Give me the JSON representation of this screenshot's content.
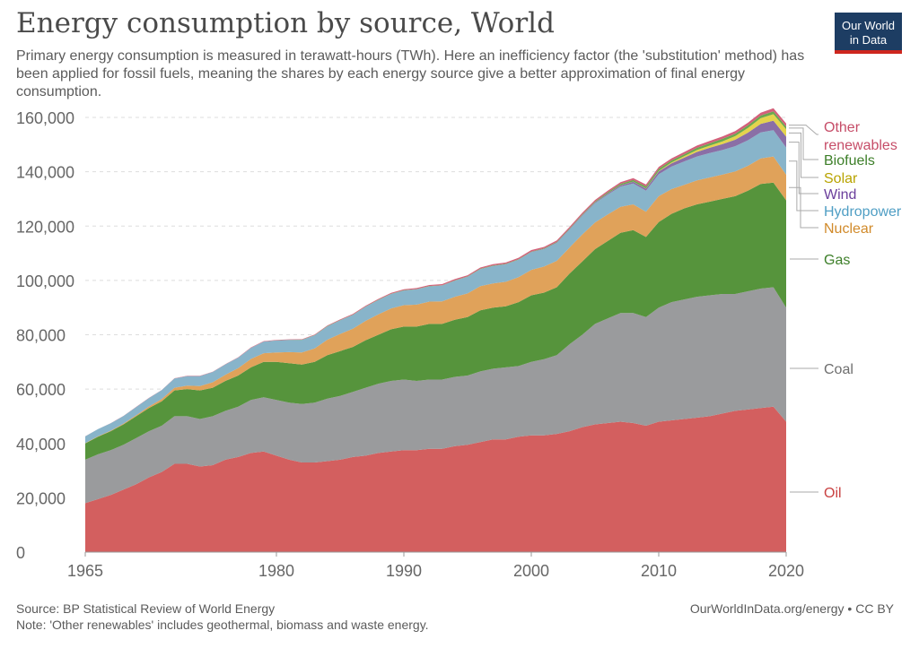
{
  "title": "Energy consumption by source, World",
  "subtitle": "Primary energy consumption is measured in terawatt-hours (TWh). Here an inefficiency factor (the 'substitution' method) has been applied for fossil fuels, meaning the shares by each energy source give a better approximation of final energy consumption.",
  "logo": {
    "line1": "Our World",
    "line2": "in Data",
    "bg": "#1d3d63",
    "accent": "#ce261e"
  },
  "footer": {
    "source": "Source: BP Statistical Review of World Energy",
    "note": "Note: 'Other renewables' includes geothermal, biomass and waste energy.",
    "license": "OurWorldInData.org/energy • CC BY"
  },
  "chart_data": {
    "type": "area",
    "stacked": true,
    "x": [
      1965,
      1966,
      1967,
      1968,
      1969,
      1970,
      1971,
      1972,
      1973,
      1974,
      1975,
      1976,
      1977,
      1978,
      1979,
      1980,
      1981,
      1982,
      1983,
      1984,
      1985,
      1986,
      1987,
      1988,
      1989,
      1990,
      1991,
      1992,
      1993,
      1994,
      1995,
      1996,
      1997,
      1998,
      1999,
      2000,
      2001,
      2002,
      2003,
      2004,
      2005,
      2006,
      2007,
      2008,
      2009,
      2010,
      2011,
      2012,
      2013,
      2014,
      2015,
      2016,
      2017,
      2018,
      2019,
      2020
    ],
    "x_ticks": [
      1965,
      1980,
      1990,
      2000,
      2010,
      2020
    ],
    "y_ticks": [
      0,
      20000,
      40000,
      60000,
      80000,
      100000,
      120000,
      140000,
      160000
    ],
    "y_tick_labels": [
      "0",
      "20,000",
      "40,000",
      "60,000",
      "80,000",
      "100,000",
      "120,000",
      "140,000",
      "160,000"
    ],
    "ylim": [
      0,
      160000
    ],
    "grid": "horizontal dashed",
    "series": [
      {
        "name": "Oil",
        "color": "#d35f5f",
        "label_color": "#c94040",
        "values": [
          18000,
          19500,
          21000,
          23000,
          25000,
          27500,
          29500,
          32500,
          32500,
          31500,
          32000,
          34000,
          35000,
          36500,
          37000,
          35500,
          34000,
          33000,
          33000,
          33500,
          34000,
          35000,
          35500,
          36500,
          37000,
          37500,
          37500,
          38000,
          38000,
          39000,
          39500,
          40500,
          41500,
          41500,
          42500,
          43000,
          43000,
          43500,
          44500,
          46000,
          47000,
          47500,
          48000,
          47500,
          46500,
          48000,
          48500,
          49000,
          49500,
          50000,
          51000,
          52000,
          52500,
          53000,
          53500,
          48000
        ]
      },
      {
        "name": "Coal",
        "color": "#9a9b9d",
        "label_color": "#6e6e6e",
        "values": [
          16000,
          16500,
          16500,
          16500,
          17000,
          17000,
          17000,
          17500,
          17500,
          17500,
          18000,
          18000,
          18500,
          19500,
          20000,
          20500,
          21000,
          21500,
          22000,
          23000,
          23500,
          24000,
          25000,
          25500,
          26000,
          26000,
          25500,
          25500,
          25500,
          25500,
          25500,
          26000,
          26000,
          26500,
          26000,
          27000,
          28000,
          29000,
          32000,
          34000,
          37000,
          38500,
          40000,
          40500,
          40000,
          42000,
          43500,
          44000,
          44500,
          44500,
          44000,
          43000,
          43500,
          44000,
          44000,
          42000
        ]
      },
      {
        "name": "Gas",
        "color": "#56943c",
        "label_color": "#3d7f29",
        "values": [
          6000,
          6500,
          7000,
          7500,
          8000,
          8500,
          9000,
          9500,
          10000,
          10500,
          10500,
          11000,
          11500,
          12000,
          13000,
          14000,
          14500,
          14500,
          15000,
          16000,
          16500,
          16500,
          17500,
          18000,
          19000,
          19500,
          20000,
          20500,
          20500,
          21000,
          21500,
          22500,
          22500,
          22500,
          23500,
          24500,
          24500,
          25000,
          26000,
          27000,
          27500,
          28500,
          29500,
          30500,
          29500,
          31500,
          32500,
          33500,
          34000,
          34500,
          35000,
          36000,
          37000,
          38500,
          38500,
          39500
        ]
      },
      {
        "name": "Nuclear",
        "color": "#e0a25a",
        "label_color": "#d18a2a",
        "values": [
          100,
          150,
          200,
          300,
          400,
          600,
          800,
          1000,
          1300,
          1600,
          2000,
          2300,
          2700,
          3100,
          3200,
          3500,
          4100,
          4500,
          5000,
          5700,
          6300,
          6700,
          7100,
          7500,
          7700,
          7900,
          8100,
          8200,
          8300,
          8500,
          8700,
          8900,
          8900,
          9000,
          9200,
          9400,
          9600,
          9700,
          9600,
          9900,
          9800,
          9800,
          9600,
          9500,
          9300,
          9500,
          9100,
          8700,
          8800,
          8900,
          9000,
          9100,
          9200,
          9400,
          9600,
          9400
        ]
      },
      {
        "name": "Hydropower",
        "color": "#88b4ca",
        "label_color": "#4f9ec4",
        "values": [
          2500,
          2600,
          2700,
          2800,
          3000,
          3100,
          3300,
          3400,
          3500,
          3700,
          3800,
          3800,
          3900,
          4100,
          4300,
          4400,
          4500,
          4600,
          4800,
          4900,
          5000,
          5100,
          5200,
          5300,
          5300,
          5400,
          5600,
          5600,
          5800,
          5900,
          6100,
          6200,
          6400,
          6400,
          6400,
          6500,
          6400,
          6600,
          6600,
          6900,
          7100,
          7300,
          7400,
          7700,
          7700,
          8100,
          8300,
          8600,
          8800,
          9000,
          9000,
          9300,
          9400,
          9600,
          9700,
          10000
        ]
      },
      {
        "name": "Wind",
        "color": "#8a6fa6",
        "label_color": "#6b3f9c",
        "values": [
          0,
          0,
          0,
          0,
          0,
          0,
          0,
          0,
          0,
          0,
          0,
          0,
          0,
          0,
          0,
          0,
          0,
          0,
          0,
          0,
          0,
          0,
          0,
          0,
          0,
          10,
          20,
          20,
          30,
          40,
          50,
          60,
          70,
          80,
          90,
          100,
          140,
          170,
          200,
          250,
          300,
          400,
          500,
          600,
          800,
          1000,
          1200,
          1400,
          1700,
          1900,
          2200,
          2400,
          2800,
          3100,
          3500,
          4000
        ]
      },
      {
        "name": "Solar",
        "color": "#e4d44c",
        "label_color": "#b8a300",
        "values": [
          0,
          0,
          0,
          0,
          0,
          0,
          0,
          0,
          0,
          0,
          0,
          0,
          0,
          0,
          0,
          0,
          0,
          0,
          0,
          0,
          0,
          0,
          0,
          0,
          0,
          0,
          0,
          0,
          0,
          0,
          0,
          0,
          0,
          0,
          0,
          10,
          10,
          10,
          10,
          20,
          30,
          40,
          50,
          80,
          100,
          200,
          300,
          500,
          700,
          800,
          1000,
          1300,
          1700,
          2100,
          2400,
          2700
        ]
      },
      {
        "name": "Biofuels",
        "color": "#6aa84f",
        "label_color": "#3d7f29",
        "values": [
          0,
          0,
          0,
          0,
          0,
          0,
          0,
          0,
          0,
          0,
          0,
          0,
          0,
          0,
          0,
          50,
          60,
          70,
          80,
          100,
          100,
          100,
          100,
          100,
          100,
          110,
          110,
          120,
          120,
          130,
          140,
          150,
          150,
          150,
          150,
          150,
          180,
          200,
          230,
          260,
          300,
          400,
          500,
          600,
          700,
          750,
          750,
          750,
          800,
          850,
          900,
          900,
          950,
          1000,
          1050,
          1000
        ]
      },
      {
        "name": "Other renewables",
        "color": "#d3607a",
        "label_color": "#c64d68",
        "values": [
          50,
          50,
          60,
          60,
          70,
          80,
          80,
          90,
          100,
          110,
          110,
          120,
          130,
          140,
          150,
          160,
          170,
          180,
          200,
          220,
          240,
          260,
          280,
          300,
          320,
          340,
          360,
          380,
          400,
          410,
          420,
          440,
          460,
          470,
          490,
          500,
          510,
          520,
          540,
          560,
          580,
          600,
          620,
          650,
          680,
          720,
          760,
          800,
          840,
          880,
          920,
          960,
          1000,
          1050,
          1100,
          1150
        ]
      }
    ],
    "legend": "right, inline labels at series end"
  }
}
